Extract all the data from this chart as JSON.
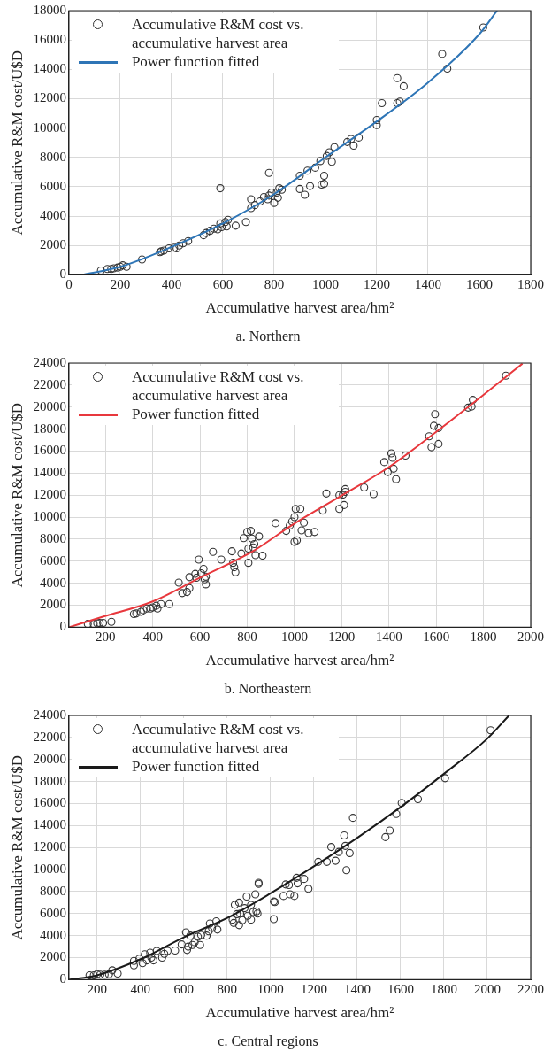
{
  "chart_data": [
    {
      "type": "scatter",
      "title": "a. Northern",
      "xlabel": "Accumulative harvest area/hm²",
      "ylabel": "Accumulative R&M cost/U$D",
      "xlim": [
        0,
        1800
      ],
      "xticks": [
        0,
        200,
        400,
        600,
        800,
        1000,
        1200,
        1400,
        1600,
        1800
      ],
      "ylim": [
        0,
        18000
      ],
      "yticks": [
        0,
        2000,
        4000,
        6000,
        8000,
        10000,
        12000,
        14000,
        16000,
        18000
      ],
      "grid": true,
      "legend": "top left",
      "marker": "circle",
      "series": [
        {
          "name": "Accumulative R&M cost vs. accumulative harvest area",
          "color": "#333333",
          "x": [
            125,
            150,
            165,
            175,
            190,
            200,
            210,
            225,
            285,
            355,
            360,
            370,
            390,
            410,
            420,
            430,
            445,
            465,
            525,
            535,
            550,
            565,
            580,
            590,
            595,
            610,
            620,
            615,
            650,
            690,
            590,
            710,
            710,
            725,
            745,
            760,
            775,
            780,
            790,
            800,
            810,
            815,
            820,
            830,
            780,
            900,
            900,
            920,
            930,
            940,
            960,
            980,
            985,
            995,
            995,
            1005,
            1015,
            1025,
            1035,
            1085,
            1100,
            1110,
            1130,
            1200,
            1200,
            1220,
            1280,
            1290,
            1280,
            1305,
            1455,
            1475,
            1615
          ],
          "values": [
            300,
            400,
            400,
            450,
            500,
            550,
            650,
            550,
            1050,
            1550,
            1600,
            1650,
            1800,
            1850,
            1800,
            2000,
            2150,
            2300,
            2700,
            2850,
            3000,
            3150,
            3100,
            3500,
            3250,
            3600,
            3750,
            3300,
            3350,
            3600,
            5900,
            4550,
            5150,
            4750,
            5000,
            5300,
            5150,
            5400,
            5600,
            4900,
            5600,
            5250,
            5900,
            5800,
            6950,
            6750,
            5850,
            5450,
            7100,
            6050,
            7300,
            7750,
            6150,
            6750,
            6200,
            8100,
            8350,
            7700,
            8700,
            9050,
            9250,
            8800,
            9350,
            10550,
            10200,
            11700,
            11700,
            11800,
            13400,
            12850,
            15050,
            14050,
            16850
          ]
        },
        {
          "type": "line",
          "name": "Power function fitted",
          "color": "#2e75b6",
          "marker": "none",
          "x": [
            49,
            200,
            400,
            600,
            800,
            1000,
            1200,
            1400,
            1600,
            1669
          ],
          "values": [
            0,
            550,
            1900,
            3500,
            5500,
            8000,
            10450,
            13100,
            16400,
            18000
          ]
        }
      ]
    },
    {
      "type": "scatter",
      "title": "b. Northeastern",
      "xlabel": "Accumulative harvest area/hm²",
      "ylabel": "Accumulative R&M cost/U$D",
      "xlim": [
        45,
        2000
      ],
      "xticks": [
        200,
        400,
        600,
        800,
        1000,
        1200,
        1400,
        1600,
        1800,
        2000
      ],
      "ylim": [
        0,
        24000
      ],
      "yticks": [
        0,
        2000,
        4000,
        6000,
        8000,
        10000,
        12000,
        14000,
        16000,
        18000,
        20000,
        22000,
        24000
      ],
      "grid": true,
      "legend": "top left",
      "marker": "circle",
      "series": [
        {
          "name": "Accumulative R&M cost vs. accumulative harvest area",
          "color": "#333333",
          "x": [
            125,
            150,
            165,
            175,
            190,
            225,
            320,
            330,
            350,
            360,
            375,
            390,
            400,
            415,
            420,
            435,
            470,
            510,
            525,
            545,
            555,
            555,
            580,
            585,
            595,
            605,
            615,
            620,
            625,
            625,
            655,
            690,
            735,
            740,
            745,
            750,
            775,
            785,
            800,
            805,
            805,
            815,
            820,
            825,
            830,
            835,
            850,
            865,
            920,
            965,
            980,
            990,
            1000,
            1005,
            1000,
            1010,
            1025,
            1030,
            1040,
            1060,
            1085,
            1120,
            1135,
            1190,
            1190,
            1205,
            1210,
            1215,
            1215,
            1295,
            1335,
            1380,
            1395,
            1410,
            1415,
            1420,
            1430,
            1470,
            1570,
            1580,
            1590,
            1595,
            1610,
            1610,
            1735,
            1750,
            1755,
            1895
          ],
          "values": [
            300,
            300,
            350,
            400,
            400,
            500,
            1200,
            1250,
            1400,
            1550,
            1700,
            1700,
            1800,
            1950,
            1700,
            2100,
            2100,
            4050,
            3100,
            3200,
            3550,
            4550,
            4850,
            4500,
            6150,
            4900,
            5300,
            4350,
            3900,
            4600,
            6850,
            6150,
            6900,
            5850,
            5450,
            5000,
            6700,
            8100,
            8650,
            7150,
            5850,
            8750,
            8050,
            7250,
            7550,
            6550,
            8250,
            6500,
            9450,
            8750,
            9250,
            9600,
            10000,
            10750,
            7750,
            7900,
            10750,
            8800,
            9500,
            8550,
            8650,
            10600,
            12150,
            10750,
            12000,
            12050,
            11100,
            12550,
            12300,
            12700,
            12100,
            15000,
            14100,
            15800,
            15400,
            14400,
            13450,
            15600,
            17350,
            16350,
            18300,
            19350,
            18100,
            16650,
            19950,
            20050,
            20650,
            22850
          ]
        },
        {
          "type": "line",
          "name": "Power function fitted",
          "color": "#e8383d",
          "marker": "none",
          "x": [
            45,
            195,
            395,
            600,
            820,
            995,
            1195,
            1400,
            1600,
            1800,
            1965
          ],
          "values": [
            0,
            1000,
            2300,
            4500,
            6850,
            9350,
            11900,
            14550,
            17750,
            21100,
            23950
          ]
        }
      ]
    },
    {
      "type": "scatter",
      "title": "c. Central regions",
      "xlabel": "Accumulative harvest area/hm²",
      "ylabel": "Accumulative R&M cost/U$D",
      "xlim": [
        70,
        2200
      ],
      "xticks": [
        200,
        400,
        600,
        800,
        1000,
        1200,
        1400,
        1600,
        1800,
        2000,
        2200
      ],
      "ylim": [
        0,
        24000
      ],
      "yticks": [
        0,
        2000,
        4000,
        6000,
        8000,
        10000,
        12000,
        14000,
        16000,
        18000,
        20000,
        22000,
        24000
      ],
      "grid": true,
      "legend": "top left",
      "marker": "circle",
      "series": [
        {
          "name": "Accumulative R&M cost vs. accumulative harvest area",
          "color": "#333333",
          "x": [
            165,
            185,
            200,
            215,
            235,
            255,
            270,
            295,
            370,
            370,
            395,
            410,
            420,
            430,
            445,
            450,
            460,
            475,
            500,
            510,
            525,
            560,
            590,
            610,
            615,
            620,
            630,
            640,
            650,
            665,
            675,
            680,
            705,
            715,
            720,
            730,
            750,
            755,
            825,
            830,
            835,
            845,
            855,
            855,
            860,
            870,
            880,
            890,
            895,
            910,
            910,
            920,
            930,
            935,
            940,
            945,
            945,
            1015,
            1020,
            1015,
            1060,
            1070,
            1085,
            1090,
            1110,
            1120,
            1125,
            1155,
            1175,
            1220,
            1260,
            1280,
            1300,
            1315,
            1340,
            1345,
            1350,
            1365,
            1380,
            1530,
            1550,
            1580,
            1605,
            1680,
            1805,
            2015
          ],
          "values": [
            400,
            400,
            500,
            450,
            450,
            500,
            850,
            550,
            1700,
            1300,
            1900,
            1500,
            2300,
            1750,
            2450,
            2000,
            1750,
            2600,
            2000,
            2350,
            2600,
            2650,
            3200,
            4300,
            2700,
            3000,
            4000,
            3150,
            3400,
            3900,
            3150,
            4050,
            4000,
            4400,
            5100,
            4700,
            5300,
            4550,
            5450,
            5150,
            6800,
            5950,
            4950,
            7000,
            6000,
            5400,
            6500,
            7550,
            5800,
            6800,
            5450,
            6150,
            7750,
            6200,
            6000,
            8800,
            8700,
            5500,
            7050,
            7100,
            7600,
            8650,
            8600,
            7750,
            7600,
            9250,
            8750,
            9150,
            8250,
            10700,
            10700,
            12050,
            10800,
            11600,
            13100,
            12150,
            9950,
            11500,
            14700,
            12950,
            13550,
            15050,
            16050,
            16400,
            18300,
            22650
          ]
        },
        {
          "type": "line",
          "name": "Power function fitted",
          "color": "#1a1a1a",
          "marker": "none",
          "x": [
            70,
            200,
            405,
            600,
            805,
            1005,
            1205,
            1405,
            1605,
            1800,
            2000,
            2100
          ],
          "values": [
            0,
            400,
            1900,
            3850,
            5650,
            7900,
            10350,
            12950,
            15750,
            18700,
            21900,
            24000
          ]
        }
      ]
    }
  ]
}
